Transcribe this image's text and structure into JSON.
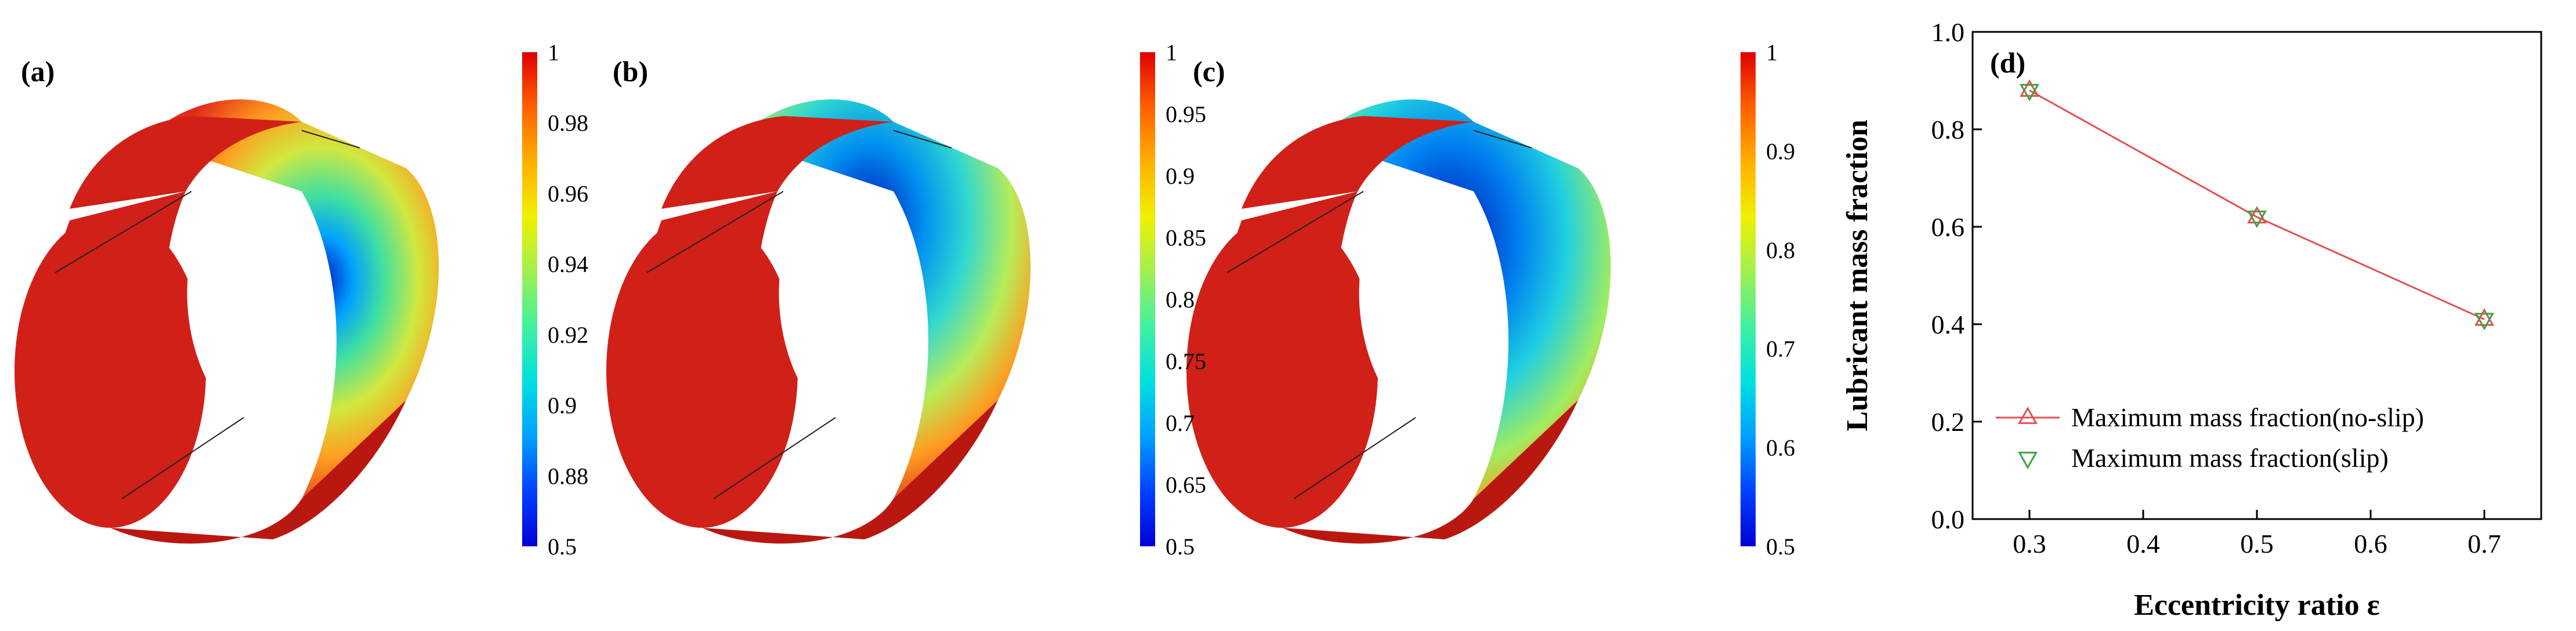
{
  "panels": [
    {
      "label": "(a)",
      "colorbar": {
        "ticks": [
          "1",
          "0.98",
          "0.96",
          "0.94",
          "0.92",
          "0.9",
          "0.88",
          "0.5"
        ],
        "palette": [
          "#0000d8",
          "#0040ff",
          "#00a0ff",
          "#00e0e0",
          "#40f0a0",
          "#a0f050",
          "#f0f000",
          "#ffb000",
          "#ff6000",
          "#e00000"
        ]
      },
      "cylinder": {
        "shell_color": "#d02018",
        "inner_color": "#b81810",
        "edge_color": "#222222"
      }
    },
    {
      "label": "(b)",
      "colorbar": {
        "ticks": [
          "1",
          "0.95",
          "0.9",
          "0.85",
          "0.8",
          "0.75",
          "0.7",
          "0.65",
          "0.5"
        ],
        "palette": [
          "#0000d8",
          "#0040ff",
          "#00a0ff",
          "#00e0e0",
          "#40f0a0",
          "#a0f050",
          "#f0f000",
          "#ffb000",
          "#ff6000",
          "#e00000"
        ]
      },
      "cylinder": {
        "shell_color": "#d02018",
        "inner_color": "#b81810",
        "edge_color": "#222222"
      }
    },
    {
      "label": "(c)",
      "colorbar": {
        "ticks": [
          "1",
          "0.9",
          "0.8",
          "0.7",
          "0.6",
          "0.5"
        ],
        "palette": [
          "#0000d8",
          "#0040ff",
          "#00a0ff",
          "#00e0e0",
          "#40f0a0",
          "#a0f050",
          "#f0f000",
          "#ffb000",
          "#ff6000",
          "#e00000"
        ]
      },
      "cylinder": {
        "shell_color": "#d02018",
        "inner_color": "#b81810",
        "edge_color": "#222222"
      }
    }
  ],
  "chart_data": {
    "type": "line",
    "label": "(d)",
    "xlabel": "Eccentricity ratio ε",
    "ylabel": "Lubricant mass fraction",
    "xlim": [
      0.25,
      0.75
    ],
    "ylim": [
      0.0,
      1.0
    ],
    "xticks": [
      0.3,
      0.4,
      0.5,
      0.6,
      0.7
    ],
    "yticks": [
      0.0,
      0.2,
      0.4,
      0.6,
      0.8,
      1.0
    ],
    "xtick_labels": [
      "0.3",
      "0.4",
      "0.5",
      "0.6",
      "0.7"
    ],
    "ytick_labels": [
      "0.0",
      "0.2",
      "0.4",
      "0.6",
      "0.8",
      "1.0"
    ],
    "x": [
      0.3,
      0.5,
      0.7
    ],
    "grid": false,
    "legend_position": "bottom-right",
    "series": [
      {
        "name": "Maximum mass fraction(no-slip)",
        "values": [
          0.88,
          0.62,
          0.41
        ],
        "marker": "triangle-up",
        "line": true,
        "color": "#e05050"
      },
      {
        "name": "Maximum mass fraction(slip)",
        "values": [
          0.88,
          0.62,
          0.41
        ],
        "marker": "triangle-down",
        "line": false,
        "color": "#40a040"
      }
    ]
  }
}
